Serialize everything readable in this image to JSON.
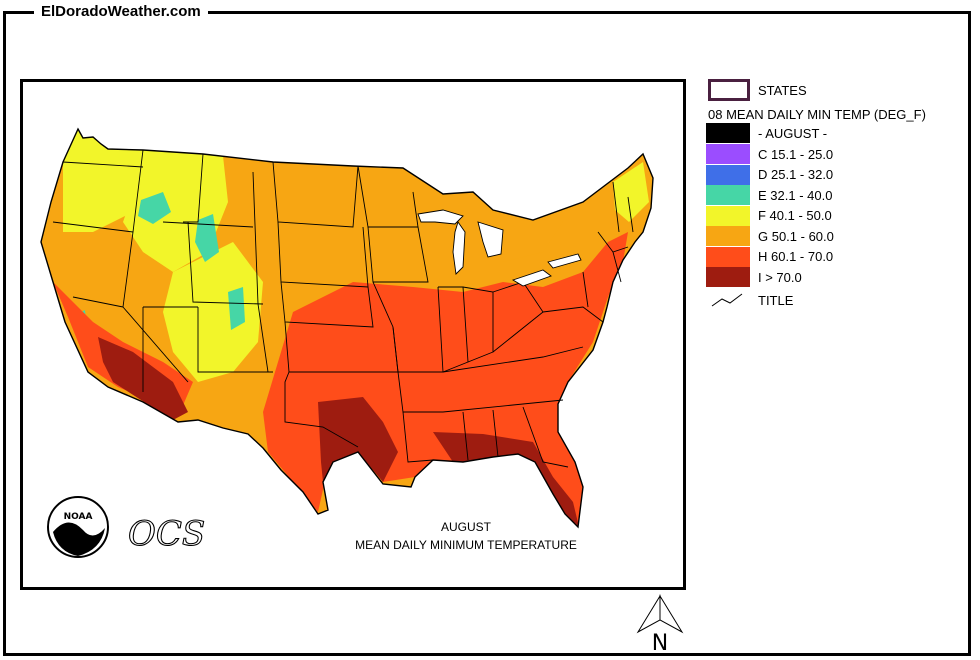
{
  "site": {
    "title": "ElDoradoWeather.com"
  },
  "map": {
    "caption_line1": "AUGUST",
    "caption_line2": "MEAN DAILY MINIMUM TEMPERATURE",
    "noaa_label": "NOAA",
    "ocs_label": "OCS",
    "north_label": "N"
  },
  "legend": {
    "states_label": "STATES",
    "heading": "08 MEAN DAILY MIN TEMP (DEG_F)",
    "month_label": "- AUGUST -",
    "month_color": "#000000",
    "classes": [
      {
        "label": "C 15.1 - 25.0",
        "color": "#9b4dff"
      },
      {
        "label": "D 25.1 - 32.0",
        "color": "#3f6fe8"
      },
      {
        "label": "E 32.1 - 40.0",
        "color": "#46d6a6"
      },
      {
        "label": "F 40.1 - 50.0",
        "color": "#f2f52a"
      },
      {
        "label": "G 50.1 - 60.0",
        "color": "#f7a613"
      },
      {
        "label": "H 60.1 - 70.0",
        "color": "#ff4d1a"
      },
      {
        "label": "I > 70.0",
        "color": "#9e1c10"
      }
    ],
    "title_label": "TITLE"
  }
}
